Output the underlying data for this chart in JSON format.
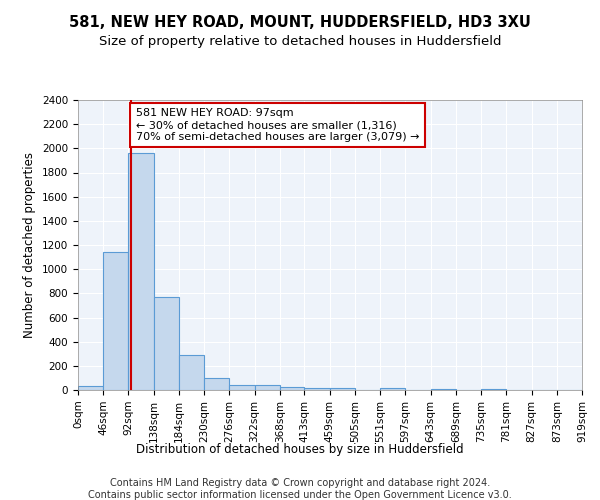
{
  "title": "581, NEW HEY ROAD, MOUNT, HUDDERSFIELD, HD3 3XU",
  "subtitle": "Size of property relative to detached houses in Huddersfield",
  "xlabel": "Distribution of detached houses by size in Huddersfield",
  "ylabel": "Number of detached properties",
  "footer_line1": "Contains HM Land Registry data © Crown copyright and database right 2024.",
  "footer_line2": "Contains public sector information licensed under the Open Government Licence v3.0.",
  "bin_edges": [
    0,
    46,
    92,
    138,
    184,
    230,
    276,
    322,
    368,
    413,
    459,
    505,
    551,
    597,
    643,
    689,
    735,
    781,
    827,
    873,
    919
  ],
  "bar_heights": [
    30,
    1140,
    1960,
    770,
    290,
    100,
    45,
    40,
    25,
    20,
    20,
    0,
    15,
    0,
    10,
    0,
    5,
    0,
    0,
    0
  ],
  "bar_color": "#c5d8ed",
  "bar_edge_color": "#5b9bd5",
  "property_size": 97,
  "property_label": "581 NEW HEY ROAD: 97sqm",
  "pct_smaller": 30,
  "num_smaller": 1316,
  "pct_larger": 70,
  "num_larger": 3079,
  "vline_color": "#cc0000",
  "annotation_box_color": "#cc0000",
  "ylim": [
    0,
    2400
  ],
  "yticks": [
    0,
    200,
    400,
    600,
    800,
    1000,
    1200,
    1400,
    1600,
    1800,
    2000,
    2200,
    2400
  ],
  "background_color": "#eef3fa",
  "grid_color": "#ffffff",
  "title_fontsize": 10.5,
  "subtitle_fontsize": 9.5,
  "axis_label_fontsize": 8.5,
  "tick_fontsize": 7.5,
  "footer_fontsize": 7.0,
  "ann_fontsize": 8.0
}
